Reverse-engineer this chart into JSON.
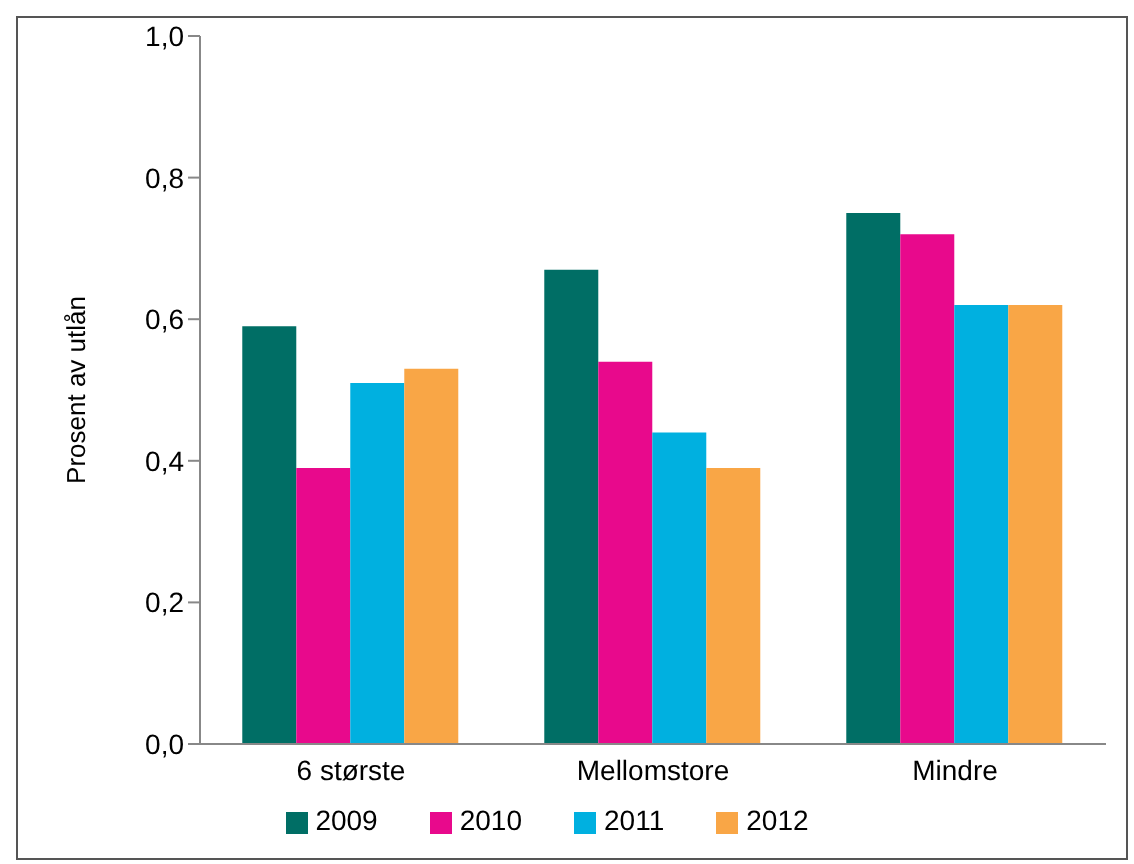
{
  "chart_data": {
    "type": "bar",
    "ylabel": "Prosent av utlån",
    "categories": [
      "6 største",
      "Mellomstore",
      "Mindre"
    ],
    "series": [
      {
        "name": "2009",
        "color": "#006e65",
        "values": [
          0.59,
          0.67,
          0.75
        ]
      },
      {
        "name": "2010",
        "color": "#e8098c",
        "values": [
          0.39,
          0.54,
          0.72
        ]
      },
      {
        "name": "2011",
        "color": "#00b0e0",
        "values": [
          0.51,
          0.44,
          0.62
        ]
      },
      {
        "name": "2012",
        "color": "#f9a646",
        "values": [
          0.53,
          0.39,
          0.62
        ]
      }
    ],
    "ylim": [
      0,
      1
    ],
    "yticks": [
      {
        "value": 0,
        "label": "0,0"
      },
      {
        "value": 0.2,
        "label": "0,2"
      },
      {
        "value": 0.4,
        "label": "0,4"
      },
      {
        "value": 0.6,
        "label": "0,6"
      },
      {
        "value": 0.8,
        "label": "0,8"
      },
      {
        "value": 1,
        "label": "1,0"
      }
    ],
    "grid": false,
    "legend": "bottom"
  }
}
